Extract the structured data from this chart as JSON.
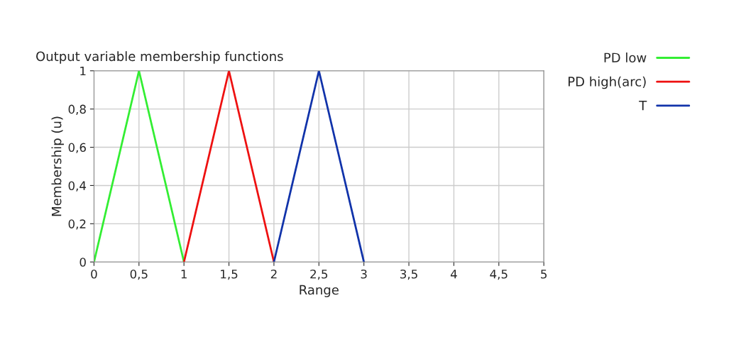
{
  "chart_data": {
    "type": "line",
    "title": "Output variable membership functions",
    "xlabel": "Range",
    "ylabel": "Membership (u)",
    "series": [
      {
        "name": "PD low",
        "color": "#33ee33",
        "x": [
          0,
          0.5,
          1
        ],
        "values": [
          0,
          1,
          0
        ]
      },
      {
        "name": "PD high(arc)",
        "color": "#ee1111",
        "x": [
          1,
          1.5,
          2
        ],
        "values": [
          0,
          1,
          0
        ]
      },
      {
        "name": "T",
        "color": "#1133aa",
        "x": [
          2,
          2.5,
          3
        ],
        "values": [
          0,
          1,
          0
        ]
      }
    ],
    "xlim": [
      0,
      5
    ],
    "xticks": [
      0,
      {
        "value": 0.5,
        "label": "0,5"
      },
      1,
      {
        "value": 1.5,
        "label": "1,5"
      },
      2,
      {
        "value": 2.5,
        "label": "2,5"
      },
      3,
      {
        "value": 3.5,
        "label": "3,5"
      },
      4,
      {
        "value": 4.5,
        "label": "4,5"
      },
      5
    ],
    "ylim": [
      0,
      1
    ],
    "yticks": [
      0,
      {
        "value": 0.2,
        "label": "0,2"
      },
      {
        "value": 0.4,
        "label": "0,4"
      },
      {
        "value": 0.6,
        "label": "0,6"
      },
      {
        "value": 0.8,
        "label": "0,8"
      },
      1
    ],
    "grid": true,
    "legend": "top right",
    "marker": "none",
    "line_style": "solid"
  }
}
